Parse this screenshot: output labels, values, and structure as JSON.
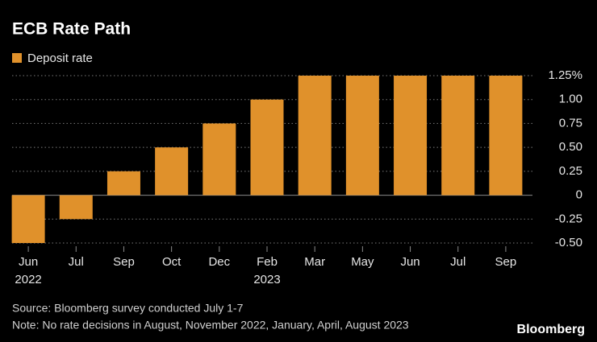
{
  "chart_data": {
    "type": "bar",
    "title": "ECB Rate Path",
    "categories": [
      "Jun 2022",
      "Jul",
      "Sep",
      "Oct",
      "Dec",
      "Feb 2023",
      "Mar",
      "May",
      "Jun",
      "Jul",
      "Sep"
    ],
    "series": [
      {
        "name": "Deposit rate",
        "color": "#e0912b",
        "values": [
          -0.5,
          -0.25,
          0.25,
          0.5,
          0.75,
          1.0,
          1.25,
          1.25,
          1.25,
          1.25,
          1.25
        ]
      }
    ],
    "ylim": [
      -0.5,
      1.25
    ],
    "yticks": [
      {
        "value": 1.25,
        "label": "1.25%"
      },
      {
        "value": 1,
        "label": "1.00"
      },
      0.75,
      {
        "value": 0.5,
        "label": "0.50"
      },
      0.25,
      0,
      -0.25,
      {
        "value": -0.5,
        "label": "-0.50"
      }
    ],
    "grid": true,
    "source": "Source: Bloomberg survey conducted July 1-7",
    "note": "Note: No rate decisions in August, November 2022, January, April, August 2023",
    "brand": "Bloomberg"
  }
}
